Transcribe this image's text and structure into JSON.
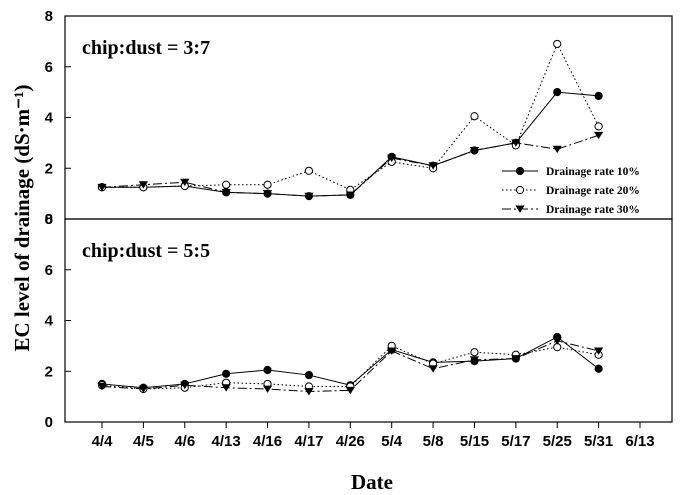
{
  "chart_data": {
    "type": "line",
    "xlabel": "Date",
    "ylabel": "EC level of drainage (dS·m⁻¹)",
    "categories": [
      "4/4",
      "4/5",
      "4/6",
      "4/13",
      "4/16",
      "4/17",
      "4/26",
      "5/4",
      "5/8",
      "5/15",
      "5/17",
      "5/25",
      "5/31",
      "6/13"
    ],
    "ylim": [
      0,
      8
    ],
    "yticks": [
      0,
      2,
      4,
      6,
      8
    ],
    "grid": false,
    "legend_position": "lower-right of top panel",
    "panels": [
      {
        "label": "chip:dust = 3:7",
        "series": [
          {
            "name": "Drainage rate 10%",
            "marker": "filled-circle",
            "line": "solid",
            "values": [
              1.25,
              1.25,
              1.3,
              1.05,
              1.0,
              0.9,
              0.95,
              2.45,
              2.1,
              2.7,
              3.0,
              5.0,
              4.85,
              null
            ]
          },
          {
            "name": "Drainage rate 20%",
            "marker": "open-circle",
            "line": "dotted",
            "values": [
              1.25,
              1.25,
              1.3,
              1.35,
              1.35,
              1.9,
              1.15,
              2.25,
              2.0,
              4.05,
              2.9,
              6.9,
              3.65,
              null
            ]
          },
          {
            "name": "Drainage rate 30%",
            "marker": "filled-triangle-down",
            "line": "dashed",
            "values": [
              1.25,
              1.35,
              1.45,
              1.05,
              1.0,
              0.9,
              0.95,
              2.4,
              2.1,
              2.7,
              3.0,
              2.75,
              3.3,
              null
            ]
          }
        ]
      },
      {
        "label": "chip:dust = 5:5",
        "series": [
          {
            "name": "Drainage rate 10%",
            "marker": "filled-circle",
            "line": "solid",
            "values": [
              1.5,
              1.35,
              1.5,
              1.9,
              2.05,
              1.85,
              1.45,
              2.85,
              2.35,
              2.4,
              2.5,
              3.35,
              2.1,
              null
            ]
          },
          {
            "name": "Drainage rate 20%",
            "marker": "open-circle",
            "line": "dotted",
            "values": [
              1.45,
              1.3,
              1.35,
              1.55,
              1.5,
              1.4,
              1.4,
              3.0,
              2.3,
              2.75,
              2.65,
              2.95,
              2.65,
              null
            ]
          },
          {
            "name": "Drainage rate 30%",
            "marker": "filled-triangle-down",
            "line": "dashed",
            "values": [
              1.4,
              1.3,
              1.45,
              1.35,
              1.3,
              1.2,
              1.25,
              2.8,
              2.1,
              2.45,
              2.5,
              3.2,
              2.8,
              null
            ]
          }
        ]
      }
    ]
  }
}
